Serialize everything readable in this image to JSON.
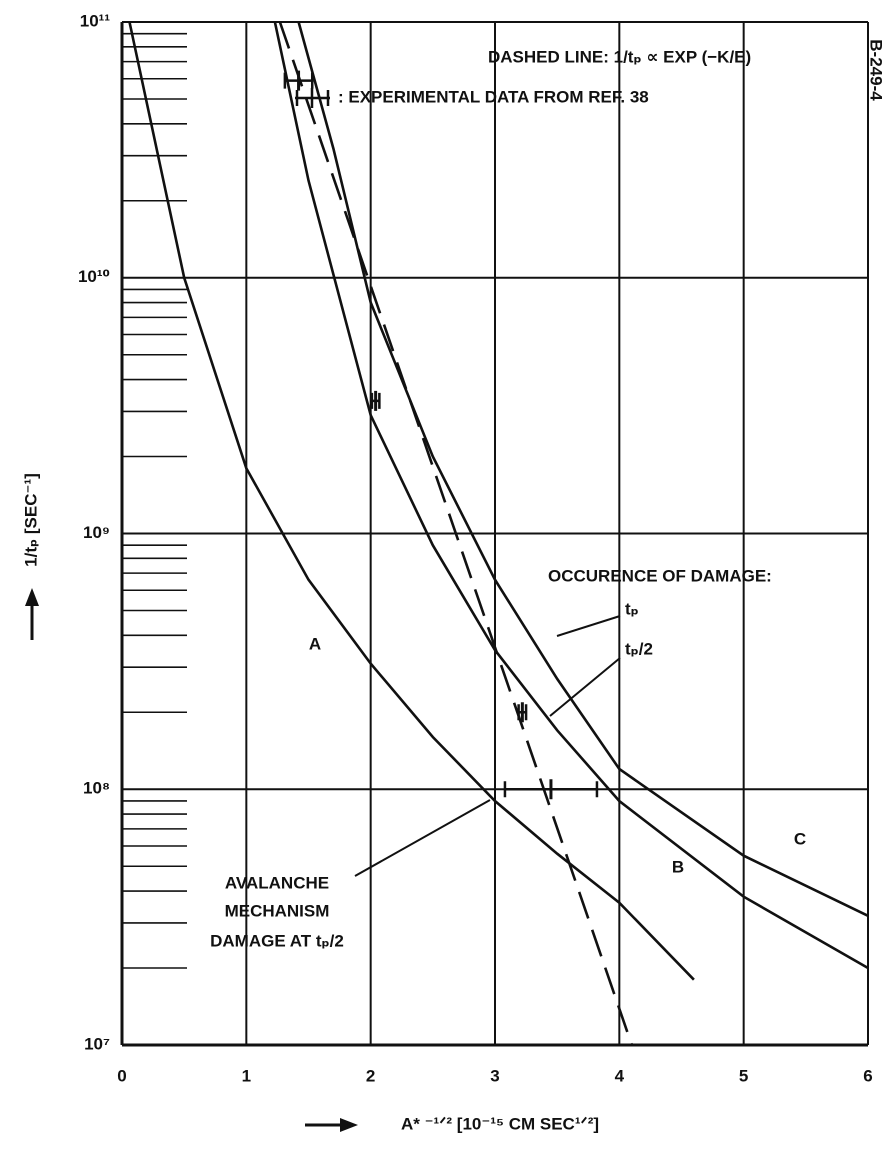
{
  "chart_data": {
    "type": "line",
    "ylog": true,
    "grid": true,
    "xlim": [
      0,
      6
    ],
    "ylim": [
      10000000,
      100000000000
    ],
    "xticks": [
      0,
      1,
      2,
      3,
      4,
      5,
      6
    ],
    "yticks": [
      {
        "value": 10000000,
        "label": "10⁷"
      },
      {
        "value": 100000000,
        "label": "10⁸"
      },
      {
        "value": 1000000000,
        "label": "10⁹"
      },
      {
        "value": 10000000000,
        "label": "10¹⁰"
      },
      {
        "value": 100000000000,
        "label": "10¹¹"
      }
    ],
    "xlabel": "A* ⁻¹ᐟ² [10⁻¹⁵ CM SEC¹ᐟ²]",
    "ylabel": "1/tₚ [SEC⁻¹]",
    "series": [
      {
        "name": "A",
        "color": "#111111",
        "x": [
          0.06,
          0.5,
          1,
          1.5,
          2,
          2.5,
          3,
          3.5,
          4,
          4.6
        ],
        "values": [
          100000000000,
          10000000000,
          1800000000,
          660000000,
          310000000,
          160000000,
          90000000,
          56000000,
          36000000,
          18000000
        ]
      },
      {
        "name": "B",
        "color": "#111111",
        "x": [
          1.23,
          1.5,
          2,
          2.5,
          3,
          3.5,
          4,
          5,
          6
        ],
        "values": [
          100000000000,
          24000000000,
          2900000000,
          900000000,
          350000000,
          170000000,
          90000000,
          38000000,
          20000000
        ]
      },
      {
        "name": "C",
        "color": "#111111",
        "x": [
          1.42,
          1.7,
          2,
          2.5,
          3,
          3.5,
          4,
          5,
          6
        ],
        "values": [
          100000000000,
          32000000000,
          8000000000,
          2000000000,
          660000000,
          270000000,
          120000000,
          55000000,
          32000000
        ]
      }
    ],
    "dashed_line": {
      "x": [
        1.27,
        4.1
      ],
      "values": [
        100000000000,
        10000000
      ]
    },
    "experimental_data": {
      "x": [
        1.42,
        2.04,
        3.22,
        3.45
      ],
      "values": [
        59000000000,
        3300000000,
        200000000,
        100000000
      ],
      "xerr": [
        0.11,
        0.03,
        0.03,
        0.37
      ]
    },
    "annotations": {
      "dashed": "DASHED LINE:  1/tₚ ∝ EXP (−K/E)",
      "experimental": ": EXPERIMENTAL DATA FROM REF. 38",
      "occurence": "OCCURENCE OF DAMAGE:",
      "tp": "tₚ",
      "tp2": "tₚ/2",
      "avalanche1": "AVALANCHE",
      "avalanche2": "MECHANISM",
      "avalanche3": "DAMAGE AT tₚ/2",
      "code": "B-249-4"
    }
  }
}
